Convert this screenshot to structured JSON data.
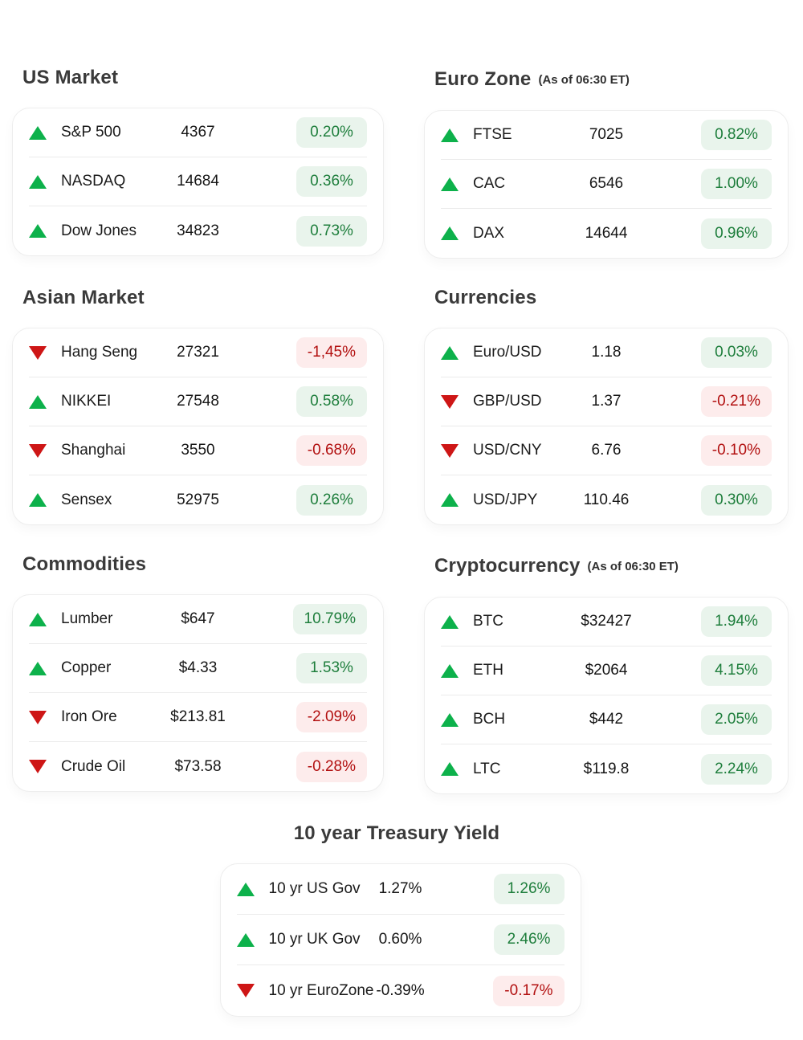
{
  "colors": {
    "up": "#0db14b",
    "down": "#ce1616",
    "badge_up_bg": "#e9f4ec",
    "badge_up_text": "#1e7e3c",
    "badge_down_bg": "#fdecec",
    "badge_down_text": "#b21010"
  },
  "sections": [
    {
      "title": "US Market",
      "subtitle": "",
      "rows": [
        {
          "direction": "up",
          "icon": "triangle-up-icon",
          "label": "S&P 500",
          "value": "4367",
          "change": "0.20%"
        },
        {
          "direction": "up",
          "icon": "triangle-up-icon",
          "label": "NASDAQ",
          "value": "14684",
          "change": "0.36%"
        },
        {
          "direction": "up",
          "icon": "triangle-up-icon",
          "label": "Dow Jones",
          "value": "34823",
          "change": "0.73%"
        }
      ]
    },
    {
      "title": "Euro Zone",
      "subtitle": "(As of 06:30 ET)",
      "rows": [
        {
          "direction": "up",
          "icon": "triangle-up-icon",
          "label": "FTSE",
          "value": "7025",
          "change": "0.82%"
        },
        {
          "direction": "up",
          "icon": "triangle-up-icon",
          "label": "CAC",
          "value": "6546",
          "change": "1.00%"
        },
        {
          "direction": "up",
          "icon": "triangle-up-icon",
          "label": "DAX",
          "value": "14644",
          "change": "0.96%"
        }
      ]
    },
    {
      "title": "Asian Market",
      "subtitle": "",
      "rows": [
        {
          "direction": "down",
          "icon": "triangle-down-icon",
          "label": "Hang Seng",
          "value": "27321",
          "change": "-1,45%"
        },
        {
          "direction": "up",
          "icon": "triangle-up-icon",
          "label": "NIKKEI",
          "value": "27548",
          "change": "0.58%"
        },
        {
          "direction": "down",
          "icon": "triangle-down-icon",
          "label": "Shanghai",
          "value": "3550",
          "change": "-0.68%"
        },
        {
          "direction": "up",
          "icon": "triangle-up-icon",
          "label": "Sensex",
          "value": "52975",
          "change": "0.26%"
        }
      ]
    },
    {
      "title": "Currencies",
      "subtitle": "",
      "rows": [
        {
          "direction": "up",
          "icon": "triangle-up-icon",
          "label": "Euro/USD",
          "value": "1.18",
          "change": "0.03%"
        },
        {
          "direction": "down",
          "icon": "triangle-down-icon",
          "label": "GBP/USD",
          "value": "1.37",
          "change": "-0.21%"
        },
        {
          "direction": "down",
          "icon": "triangle-down-icon",
          "label": "USD/CNY",
          "value": "6.76",
          "change": "-0.10%"
        },
        {
          "direction": "up",
          "icon": "triangle-up-icon",
          "label": "USD/JPY",
          "value": "110.46",
          "change": "0.30%"
        }
      ]
    },
    {
      "title": "Commodities",
      "subtitle": "",
      "rows": [
        {
          "direction": "up",
          "icon": "triangle-up-icon",
          "label": "Lumber",
          "value": "$647",
          "change": "10.79%"
        },
        {
          "direction": "up",
          "icon": "triangle-up-icon",
          "label": "Copper",
          "value": "$4.33",
          "change": "1.53%"
        },
        {
          "direction": "down",
          "icon": "triangle-down-icon",
          "label": "Iron Ore",
          "value": "$213.81",
          "change": "-2.09%"
        },
        {
          "direction": "down",
          "icon": "triangle-down-icon",
          "label": "Crude Oil",
          "value": "$73.58",
          "change": "-0.28%"
        }
      ]
    },
    {
      "title": "Cryptocurrency",
      "subtitle": "(As of 06:30 ET)",
      "rows": [
        {
          "direction": "up",
          "icon": "triangle-up-icon",
          "label": "BTC",
          "value": "$32427",
          "change": "1.94%"
        },
        {
          "direction": "up",
          "icon": "triangle-up-icon",
          "label": "ETH",
          "value": "$2064",
          "change": "4.15%"
        },
        {
          "direction": "up",
          "icon": "triangle-up-icon",
          "label": "BCH",
          "value": "$442",
          "change": "2.05%"
        },
        {
          "direction": "up",
          "icon": "triangle-up-icon",
          "label": "LTC",
          "value": "$119.8",
          "change": "2.24%"
        }
      ]
    },
    {
      "title": "10 year Treasury Yield",
      "subtitle": "",
      "rows": [
        {
          "direction": "up",
          "icon": "triangle-up-icon",
          "label": "10 yr US Gov",
          "value": "1.27%",
          "change": "1.26%"
        },
        {
          "direction": "up",
          "icon": "triangle-up-icon",
          "label": "10 yr UK Gov",
          "value": "0.60%",
          "change": "2.46%"
        },
        {
          "direction": "down",
          "icon": "triangle-down-icon",
          "label": "10 yr EuroZone",
          "value": "-0.39%",
          "change": "-0.17%"
        }
      ]
    }
  ]
}
